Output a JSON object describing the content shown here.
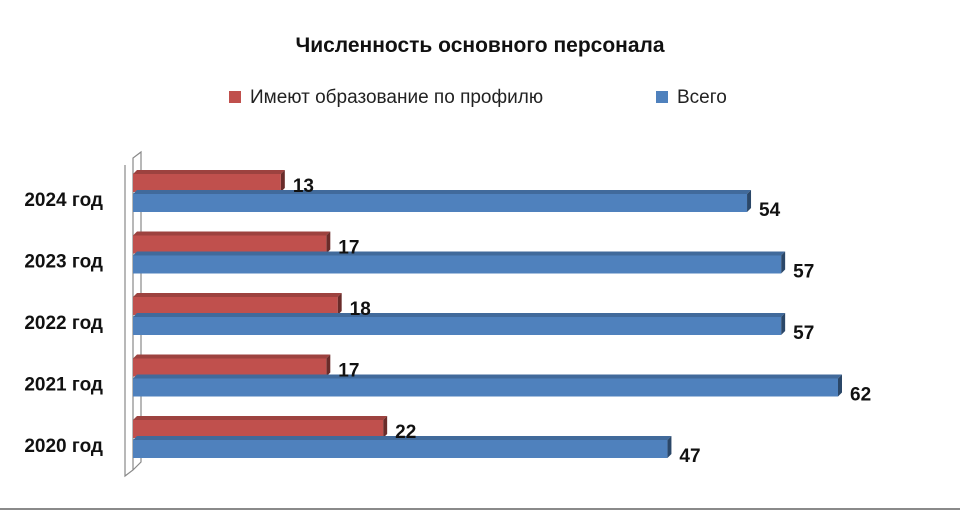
{
  "chart_data": {
    "type": "bar",
    "orientation": "horizontal",
    "style": "3d",
    "title": "Численность основного персонала",
    "categories": [
      "2024 год",
      "2023 год",
      "2022 год",
      "2021 год",
      "2020 год"
    ],
    "series": [
      {
        "name": "Имеют образование по профилю",
        "color": "#c0504d",
        "values": [
          13,
          17,
          18,
          17,
          22
        ]
      },
      {
        "name": "Всего",
        "color": "#4f81bd",
        "values": [
          54,
          57,
          57,
          62,
          47
        ]
      }
    ],
    "xlim": [
      0,
      62
    ],
    "legend_position": "top",
    "grid": false,
    "data_labels": true
  }
}
